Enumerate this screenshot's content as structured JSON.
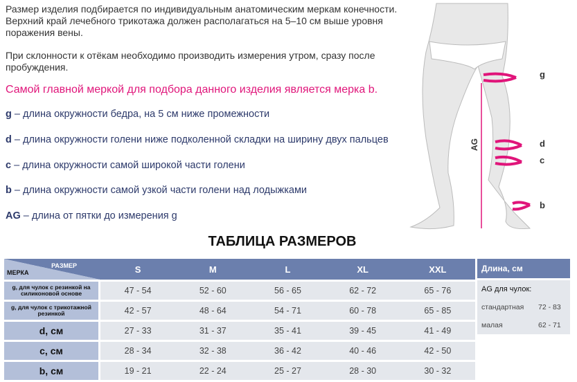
{
  "intro": {
    "p1": "Размер изделия подбирается по индивидуальным анатомическим меркам конечности. Верхний край лечебного трикотажа должен располагаться на 5–10 см выше уровня поражения вены.",
    "p2": "При склонности к отёкам необходимо производить измерения утром, сразу после пробуждения.",
    "highlight": "Самой главной меркой для подбора данного изделия является мерка b."
  },
  "measures": [
    {
      "key": "g",
      "desc": " – длина окружности бедра, на 5 см ниже промежности"
    },
    {
      "key": "d",
      "desc": " – длина окружности голени ниже подколенной складки на ширину двух пальцев"
    },
    {
      "key": "c",
      "desc": " – длина окружности самой широкой части голени"
    },
    {
      "key": "b",
      "desc": " – длина окружности самой узкой части голени над лодыжками"
    },
    {
      "key": "AG",
      "desc": " – длина от пятки до измерения g"
    }
  ],
  "figure": {
    "labels": {
      "g": "g",
      "d": "d",
      "c": "c",
      "b": "b",
      "ag": "AG"
    },
    "accent": "#e0157a"
  },
  "table_title": "ТАБЛИЦА РАЗМЕРОВ",
  "size_table": {
    "corner_top": "РАЗМЕР",
    "corner_bottom": "МЕРКА",
    "sizes": [
      "S",
      "M",
      "L",
      "XL",
      "XXL"
    ],
    "rows": [
      {
        "label": "g, для чулок с  резинкой на силиконовой основе",
        "values": [
          "47 - 54",
          "52 - 60",
          "56 - 65",
          "62 - 72",
          "65 - 76"
        ]
      },
      {
        "label": "g, для чулок с трикотажной резинкой",
        "values": [
          "42 - 57",
          "48 - 64",
          "54 - 71",
          "60 - 78",
          "65 - 85"
        ]
      },
      {
        "label": "d, см",
        "values": [
          "27 - 33",
          "31 - 37",
          "35 - 41",
          "39 - 45",
          "41 - 49"
        ]
      },
      {
        "label": "c, см",
        "values": [
          "28 - 34",
          "32 - 38",
          "36 - 42",
          "40 - 46",
          "42 - 50"
        ]
      },
      {
        "label": "b, см",
        "values": [
          "19 - 21",
          "22 - 24",
          "25 - 27",
          "28 - 30",
          "30 - 32"
        ]
      }
    ]
  },
  "length_table": {
    "header": "Длина, см",
    "subtitle": "AG для чулок:",
    "rows": [
      {
        "label": "стандартная",
        "value": "72 - 83"
      },
      {
        "label": "малая",
        "value": "62 - 71"
      }
    ]
  },
  "colors": {
    "header": "#6b7fad",
    "label_bg": "#b3bfd9",
    "cell_bg": "#e4e7ec",
    "accent": "#e0157a",
    "text_blue": "#2d3a6b"
  }
}
